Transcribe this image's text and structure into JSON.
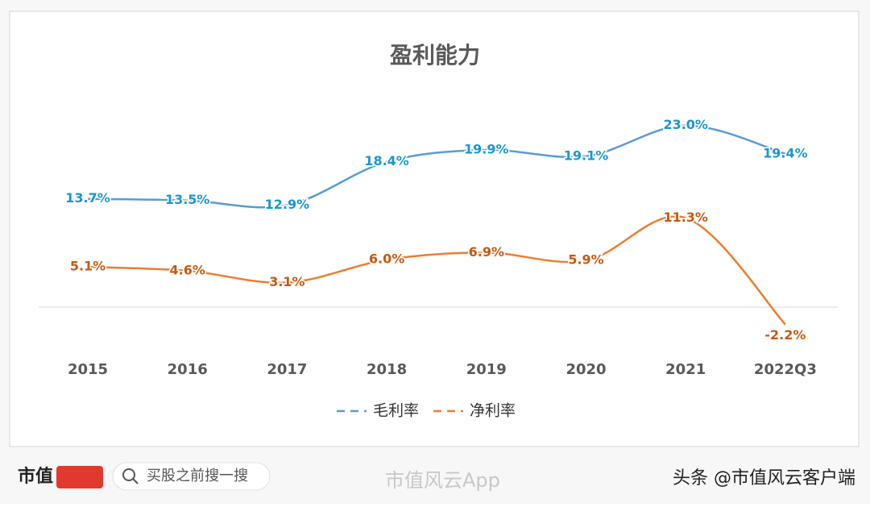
{
  "chart_data": {
    "type": "line",
    "title": "盈利能力",
    "categories": [
      "2015",
      "2016",
      "2017",
      "2018",
      "2019",
      "2020",
      "2021",
      "2022Q3"
    ],
    "series": [
      {
        "name": "毛利率",
        "color": "#5b9bd5",
        "label_color": "#1a96d0",
        "values": [
          13.7,
          13.5,
          12.9,
          18.4,
          19.9,
          19.1,
          23.0,
          19.4
        ],
        "value_labels": [
          "13.7%",
          "13.5%",
          "12.9%",
          "18.4%",
          "19.9%",
          "19.1%",
          "23.0%",
          "19.4%"
        ]
      },
      {
        "name": "净利率",
        "color": "#ed7d31",
        "label_color": "#c55a11",
        "values": [
          5.1,
          4.6,
          3.1,
          6.0,
          6.9,
          5.9,
          11.3,
          -2.2
        ],
        "value_labels": [
          "5.1%",
          "4.6%",
          "3.1%",
          "6.0%",
          "6.9%",
          "5.9%",
          "11.3%",
          "-2.2%"
        ]
      }
    ],
    "legend": "bottom",
    "smooth": true
  },
  "footer": {
    "brand": "市值",
    "search": "买股之前搜一搜",
    "watermark": "市值风云App",
    "source": "头条 @市值风云客户端"
  }
}
